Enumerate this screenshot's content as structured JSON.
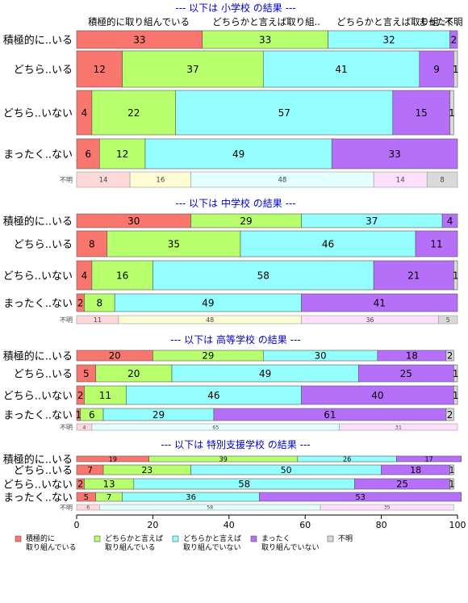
{
  "chart_data": {
    "type": "bar",
    "orientation": "horizontal-stacked-100",
    "xlim": [
      0,
      100
    ],
    "xticks": [
      0,
      20,
      40,
      60,
      80,
      100
    ],
    "legend_position": "bottom",
    "categories_legend": [
      {
        "label": "積極的に\n取り組んでいる",
        "color": "#F8766D"
      },
      {
        "label": "どちらかと言えば\n取り組んでいる",
        "color": "#B7FF6D"
      },
      {
        "label": "どちらかと言えば\n取り組んでいない",
        "color": "#94FDFD"
      },
      {
        "label": "まったく\n取り組んでいない",
        "color": "#B56FF8"
      },
      {
        "label": "不明",
        "color": "#D9D9D9"
      }
    ],
    "column_headers": [
      "積極的に取り組んでいる",
      "どちらかと言えば取り組..",
      "どちらかと言えば取り組..",
      "まったく..",
      "不明"
    ],
    "panels": [
      {
        "title": "--- 以下は 小学校 の結果 ---",
        "rows": [
          {
            "label": "積極的に..いる",
            "values": [
              33,
              33,
              32,
              2,
              0
            ]
          },
          {
            "label": "どちら..いる",
            "values": [
              12,
              37,
              41,
              9,
              1
            ]
          },
          {
            "label": "どちら..いない",
            "values": [
              4,
              22,
              57,
              15,
              1
            ]
          },
          {
            "label": "まったく..ない",
            "values": [
              6,
              12,
              49,
              33,
              0
            ]
          }
        ],
        "unknown": {
          "label": "不明",
          "values": [
            14,
            16,
            48,
            14,
            8
          ]
        }
      },
      {
        "title": "--- 以下は 中学校 の結果 ---",
        "rows": [
          {
            "label": "積極的に..いる",
            "values": [
              30,
              29,
              37,
              4,
              0
            ]
          },
          {
            "label": "どちら..いる",
            "values": [
              8,
              35,
              46,
              11,
              0
            ]
          },
          {
            "label": "どちら..いない",
            "values": [
              4,
              16,
              58,
              21,
              1
            ]
          },
          {
            "label": "まったく..ない",
            "values": [
              2,
              8,
              49,
              41,
              0
            ]
          }
        ],
        "unknown": {
          "label": "不明",
          "values": [
            11,
            48,
            0,
            36,
            5
          ]
        }
      },
      {
        "title": "--- 以下は 高等学校 の結果 ---",
        "rows": [
          {
            "label": "積極的に..いる",
            "values": [
              20,
              29,
              30,
              18,
              2
            ]
          },
          {
            "label": "どちら..いる",
            "values": [
              5,
              20,
              49,
              25,
              1
            ]
          },
          {
            "label": "どちら..いない",
            "values": [
              2,
              11,
              46,
              40,
              1
            ]
          },
          {
            "label": "まったく..ない",
            "values": [
              1,
              6,
              29,
              61,
              2
            ]
          }
        ],
        "unknown": {
          "label": "不明",
          "values": [
            4,
            0,
            65,
            31,
            0
          ]
        }
      },
      {
        "title": "--- 以下は 特別支援学校 の結果 ---",
        "rows": [
          {
            "label": "積極的に..いる",
            "values": [
              19,
              39,
              26,
              17,
              0
            ]
          },
          {
            "label": "どちら..いる",
            "values": [
              7,
              23,
              50,
              18,
              1
            ]
          },
          {
            "label": "どちら..いない",
            "values": [
              2,
              13,
              58,
              25,
              1
            ]
          },
          {
            "label": "まったく..ない",
            "values": [
              5,
              7,
              36,
              53,
              0
            ]
          }
        ],
        "unknown": {
          "label": "不明",
          "values": [
            6,
            0,
            58,
            35,
            0
          ]
        }
      }
    ]
  }
}
